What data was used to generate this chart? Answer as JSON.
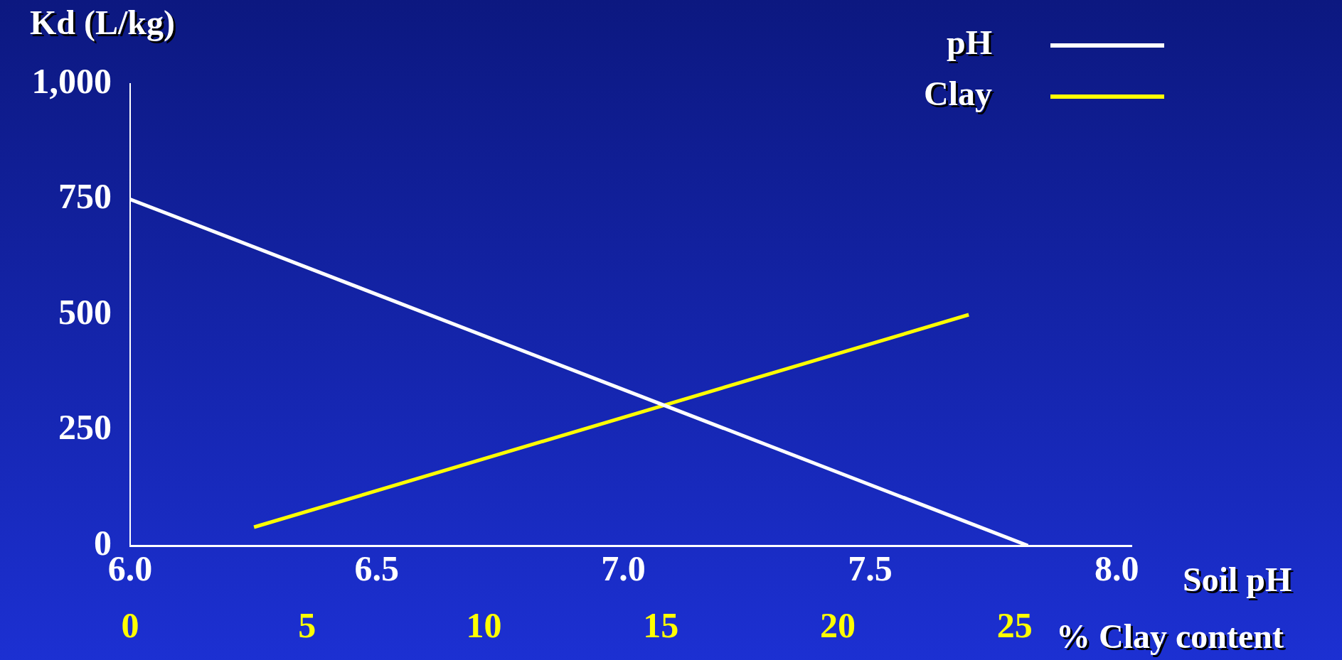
{
  "chart_data": {
    "type": "line",
    "ylabel": "Kd (L/kg)",
    "xlabel": "Soil pH",
    "x2label": "% Clay content",
    "xlim": [
      6.0,
      8.03
    ],
    "xticks": [
      {
        "value": 6,
        "label": "6.0"
      },
      6.5,
      {
        "value": 7,
        "label": "7.0"
      },
      7.5,
      {
        "value": 8,
        "label": "8.0"
      }
    ],
    "x2lim": [
      0,
      28.3
    ],
    "x2ticks": [
      0,
      5,
      10,
      15,
      20,
      25
    ],
    "ylim": [
      0,
      1000
    ],
    "yticks": [
      0,
      250,
      500,
      750,
      {
        "value": 1000,
        "label": "1,000"
      }
    ],
    "grid": false,
    "legend": "top right",
    "marker": "none",
    "series": [
      {
        "name": "pH",
        "color": "#ffffff",
        "x": [
          6.0,
          7.82
        ],
        "values": [
          750,
          0
        ]
      },
      {
        "name": "Clay",
        "color": "#ffff00",
        "axis": "x2",
        "x": [
          3.5,
          23.7
        ],
        "values": [
          40,
          500
        ]
      }
    ]
  }
}
